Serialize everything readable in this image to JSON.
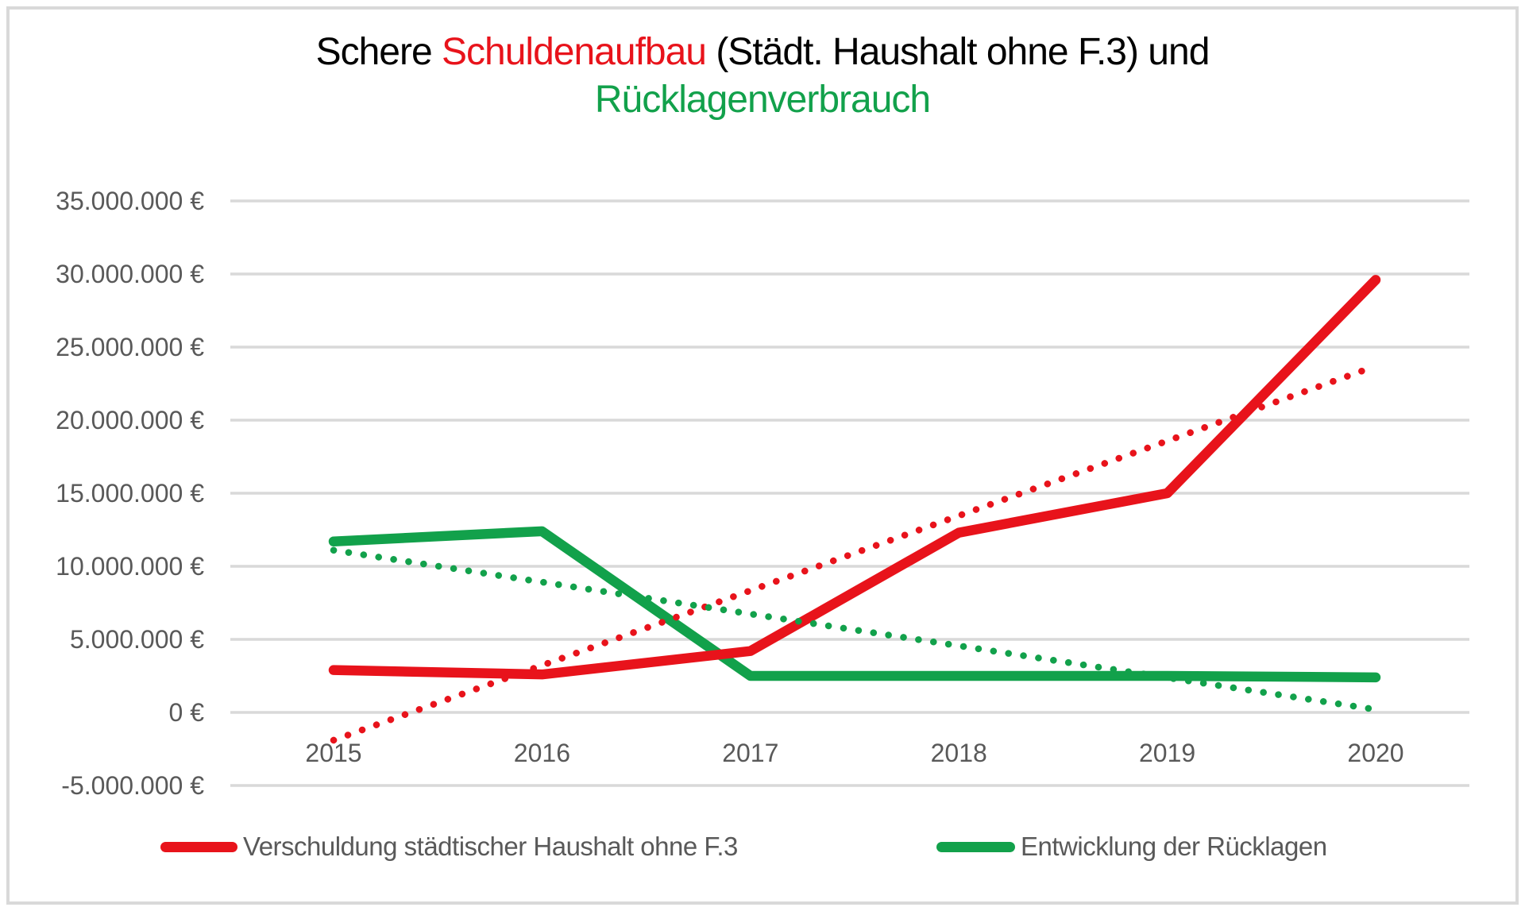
{
  "title": {
    "prefix": "Schere ",
    "highlight_red": "Schuldenaufbau",
    "middle": " (Städt. Haushalt ohne F.3) und",
    "highlight_green": "Rücklagenverbrauch"
  },
  "colors": {
    "red": "#e8131b",
    "green": "#12a14b",
    "axis_text": "#595959",
    "gridline": "#d9d9d9",
    "frame_border": "#d9d9d9",
    "background": "#ffffff"
  },
  "chart_data": {
    "type": "line",
    "title": "Schere Schuldenaufbau (Städt. Haushalt ohne F.3) und Rücklagenverbrauch",
    "categories": [
      "2015",
      "2016",
      "2017",
      "2018",
      "2019",
      "2020"
    ],
    "series": [
      {
        "name": "Verschuldung städtischer Haushalt ohne F.3",
        "color": "#e8131b",
        "style": "solid",
        "values": [
          2900000,
          2600000,
          4200000,
          12300000,
          15000000,
          29600000
        ]
      },
      {
        "name": "Entwicklung der Rücklagen",
        "color": "#12a14b",
        "style": "solid",
        "values": [
          11700000,
          12400000,
          2500000,
          2500000,
          2500000,
          2400000
        ]
      }
    ],
    "trendlines": [
      {
        "role": "trendline",
        "of": "Verschuldung städtischer Haushalt ohne F.3",
        "color": "#e8131b",
        "style": "dotted",
        "start": -1900000,
        "end": 23700000
      },
      {
        "role": "trendline",
        "of": "Entwicklung der Rücklagen",
        "color": "#12a14b",
        "style": "dotted",
        "start": 11100000,
        "end": 200000
      }
    ],
    "ylim": [
      -5000000,
      35000000
    ],
    "ytick_step": 5000000,
    "ytick_labels_top_to_bottom": [
      "35.000.000 €",
      "30.000.000 €",
      "25.000.000 €",
      "20.000.000 €",
      "15.000.000 €",
      "10.000.000 €",
      "5.000.000 €",
      "0 €",
      "-5.000.000 €"
    ],
    "grid": "horizontal",
    "legend_position": "bottom"
  },
  "legend": {
    "items": [
      {
        "label": "Verschuldung städtischer Haushalt ohne F.3",
        "color": "#e8131b"
      },
      {
        "label": "Entwicklung der Rücklagen",
        "color": "#12a14b"
      }
    ]
  }
}
